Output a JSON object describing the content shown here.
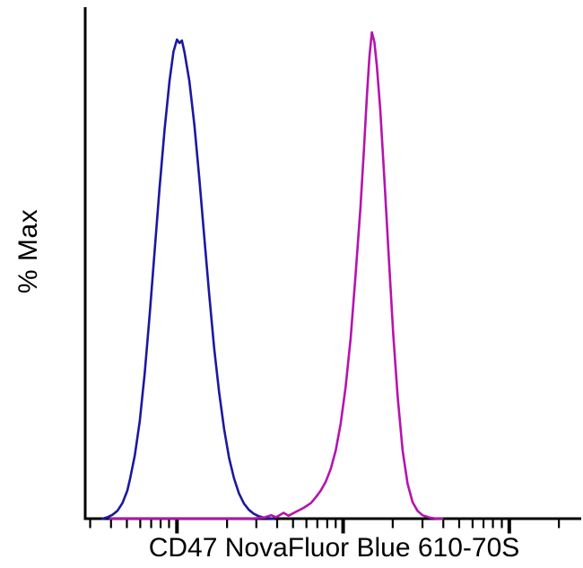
{
  "chart_data": {
    "type": "line",
    "subtype": "flow-cytometry-histogram-overlay",
    "title": "",
    "xlabel": "CD47 NovaFluor Blue 610-70S",
    "ylabel": "% Max",
    "x_scale": "log (unlabeled decade tick marks)",
    "ylim": [
      0,
      100
    ],
    "grid": false,
    "legend": null,
    "axis_color": "#000000",
    "background_color": "#ffffff",
    "series": [
      {
        "name": "blue-peak",
        "color": "#1c18a0",
        "points": [
          [
            0.035,
            0
          ],
          [
            0.045,
            0.3
          ],
          [
            0.055,
            0.8
          ],
          [
            0.065,
            1.6
          ],
          [
            0.075,
            3.2
          ],
          [
            0.085,
            5.8
          ],
          [
            0.09,
            8
          ],
          [
            0.1,
            13
          ],
          [
            0.11,
            20
          ],
          [
            0.12,
            30
          ],
          [
            0.13,
            42
          ],
          [
            0.14,
            55
          ],
          [
            0.15,
            68
          ],
          [
            0.16,
            80
          ],
          [
            0.17,
            90
          ],
          [
            0.178,
            96
          ],
          [
            0.185,
            98.5
          ],
          [
            0.19,
            97.8
          ],
          [
            0.195,
            98.3
          ],
          [
            0.2,
            96
          ],
          [
            0.21,
            90
          ],
          [
            0.22,
            81
          ],
          [
            0.23,
            70
          ],
          [
            0.24,
            58
          ],
          [
            0.25,
            46
          ],
          [
            0.26,
            35
          ],
          [
            0.27,
            26
          ],
          [
            0.28,
            18.5
          ],
          [
            0.29,
            12.5
          ],
          [
            0.3,
            8.3
          ],
          [
            0.31,
            5.2
          ],
          [
            0.32,
            3.1
          ],
          [
            0.33,
            1.8
          ],
          [
            0.34,
            1.0
          ],
          [
            0.35,
            0.5
          ],
          [
            0.36,
            0.2
          ],
          [
            0.38,
            0
          ]
        ]
      },
      {
        "name": "magenta-peak",
        "color": "#b414ae",
        "points": [
          [
            0.05,
            0
          ],
          [
            0.2,
            0
          ],
          [
            0.33,
            0
          ],
          [
            0.36,
            0.2
          ],
          [
            0.375,
            0.7
          ],
          [
            0.385,
            0.3
          ],
          [
            0.4,
            1.2
          ],
          [
            0.41,
            0.6
          ],
          [
            0.425,
            1.4
          ],
          [
            0.44,
            2.2
          ],
          [
            0.455,
            3.2
          ],
          [
            0.465,
            4.4
          ],
          [
            0.475,
            5.8
          ],
          [
            0.485,
            7.6
          ],
          [
            0.495,
            10.2
          ],
          [
            0.505,
            14
          ],
          [
            0.515,
            19.5
          ],
          [
            0.525,
            27
          ],
          [
            0.535,
            37
          ],
          [
            0.545,
            50
          ],
          [
            0.555,
            64
          ],
          [
            0.562,
            76
          ],
          [
            0.568,
            87
          ],
          [
            0.573,
            95
          ],
          [
            0.578,
            100
          ],
          [
            0.583,
            98
          ],
          [
            0.588,
            93
          ],
          [
            0.595,
            84
          ],
          [
            0.603,
            70
          ],
          [
            0.612,
            54
          ],
          [
            0.621,
            38
          ],
          [
            0.63,
            25
          ],
          [
            0.64,
            14
          ],
          [
            0.65,
            7.2
          ],
          [
            0.66,
            3.4
          ],
          [
            0.67,
            1.6
          ],
          [
            0.68,
            0.7
          ],
          [
            0.695,
            0.2
          ],
          [
            0.71,
            0
          ],
          [
            0.72,
            0
          ]
        ]
      }
    ],
    "x_ticks": [
      {
        "pos": 0.01,
        "major": false
      },
      {
        "pos": 0.052,
        "major": false
      },
      {
        "pos": 0.084,
        "major": false
      },
      {
        "pos": 0.111,
        "major": false
      },
      {
        "pos": 0.133,
        "major": false
      },
      {
        "pos": 0.152,
        "major": false
      },
      {
        "pos": 0.169,
        "major": false
      },
      {
        "pos": 0.185,
        "major": true
      },
      {
        "pos": 0.286,
        "major": false
      },
      {
        "pos": 0.345,
        "major": false
      },
      {
        "pos": 0.387,
        "major": false
      },
      {
        "pos": 0.419,
        "major": false
      },
      {
        "pos": 0.446,
        "major": false
      },
      {
        "pos": 0.468,
        "major": false
      },
      {
        "pos": 0.488,
        "major": false
      },
      {
        "pos": 0.505,
        "major": false
      },
      {
        "pos": 0.52,
        "major": true
      },
      {
        "pos": 0.62,
        "major": false
      },
      {
        "pos": 0.68,
        "major": false
      },
      {
        "pos": 0.722,
        "major": false
      },
      {
        "pos": 0.754,
        "major": false
      },
      {
        "pos": 0.781,
        "major": false
      },
      {
        "pos": 0.803,
        "major": false
      },
      {
        "pos": 0.822,
        "major": false
      },
      {
        "pos": 0.84,
        "major": false
      },
      {
        "pos": 0.855,
        "major": true
      },
      {
        "pos": 0.955,
        "major": false
      }
    ]
  },
  "labels": {
    "ylabel": "% Max",
    "xlabel": "CD47 NovaFluor Blue 610-70S"
  },
  "colors": {
    "axis": "#000000",
    "background": "#ffffff",
    "blue_series": "#1c18a0",
    "magenta_series": "#b414ae"
  }
}
